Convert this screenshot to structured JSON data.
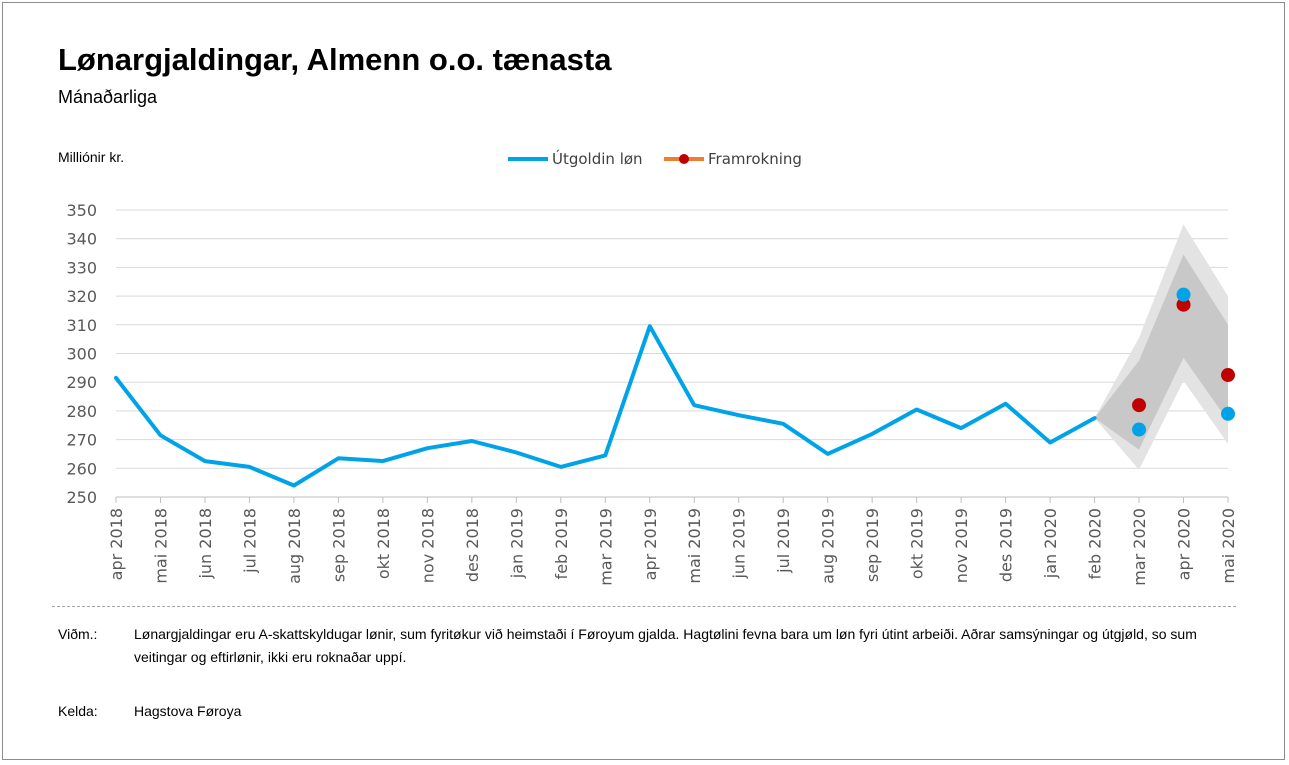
{
  "title": "Lønargjaldingar, Almenn o.o. tænasta",
  "subtitle": "Mánaðarliga",
  "unit_label": "Milliónir kr.",
  "legend": {
    "actual": "Útgoldin løn",
    "forecast": "Framrokning"
  },
  "colors": {
    "actual": "#00a3e8",
    "forecast": "#c00000",
    "forecast_legend_line": "#ed7d31",
    "band_outer": "#e3e3e3",
    "band_inner": "#c8c8c8",
    "grid": "#d9d9d9"
  },
  "chart_data": {
    "type": "line",
    "categories": [
      "apr 2018",
      "mai 2018",
      "jun 2018",
      "jul 2018",
      "aug 2018",
      "sep 2018",
      "okt 2018",
      "nov 2018",
      "des 2018",
      "jan 2019",
      "feb 2019",
      "mar 2019",
      "apr 2019",
      "mai 2019",
      "jun 2019",
      "jul 2019",
      "aug 2019",
      "sep 2019",
      "okt 2019",
      "nov 2019",
      "des 2019",
      "jan 2020",
      "feb 2020",
      "mar 2020",
      "apr 2020",
      "mai 2020"
    ],
    "ylim": [
      250,
      350
    ],
    "yticks": [
      250,
      260,
      270,
      280,
      290,
      300,
      310,
      320,
      330,
      340,
      350
    ],
    "grid": true,
    "legend_position": "top",
    "series": [
      {
        "name": "Útgoldin løn",
        "line_values": [
          291.5,
          271.5,
          262.5,
          260.5,
          254,
          263.5,
          262.5,
          267,
          269.5,
          265.5,
          260.5,
          264.5,
          309.5,
          282,
          278.5,
          275.5,
          265,
          272,
          280.5,
          274,
          282.5,
          269,
          277.5
        ],
        "point_values": {
          "mar 2020": 273.5,
          "apr 2020": 320.5,
          "mai 2020": 279
        }
      },
      {
        "name": "Framrokning",
        "values": {
          "mar 2020": 282,
          "apr 2020": 317,
          "mai 2020": 292.5
        },
        "band_inner": {
          "feb 2020": [
            277.5,
            277.5
          ],
          "mar 2020": [
            266.5,
            297.5
          ],
          "apr 2020": [
            298.5,
            334.5
          ],
          "mai 2020": [
            276.5,
            310
          ]
        },
        "band_outer": {
          "feb 2020": [
            277.5,
            277.5
          ],
          "mar 2020": [
            259.5,
            305.5
          ],
          "apr 2020": [
            290.5,
            345
          ],
          "mai 2020": [
            268.5,
            320
          ]
        }
      }
    ]
  },
  "notes": {
    "remark_label": "Viðm.:",
    "remark_text": "Lønargjaldingar eru A-skattskyldugar lønir, sum fyritøkur við heimstaði í Føroyum gjalda. Hagtølini fevna bara um løn fyri útint arbeiði. Aðrar samsýningar og útgjøld, so sum veitingar og eftirlønir, ikki eru roknaðar uppí.",
    "source_label": "Kelda:",
    "source_text": "Hagstova Føroya"
  }
}
